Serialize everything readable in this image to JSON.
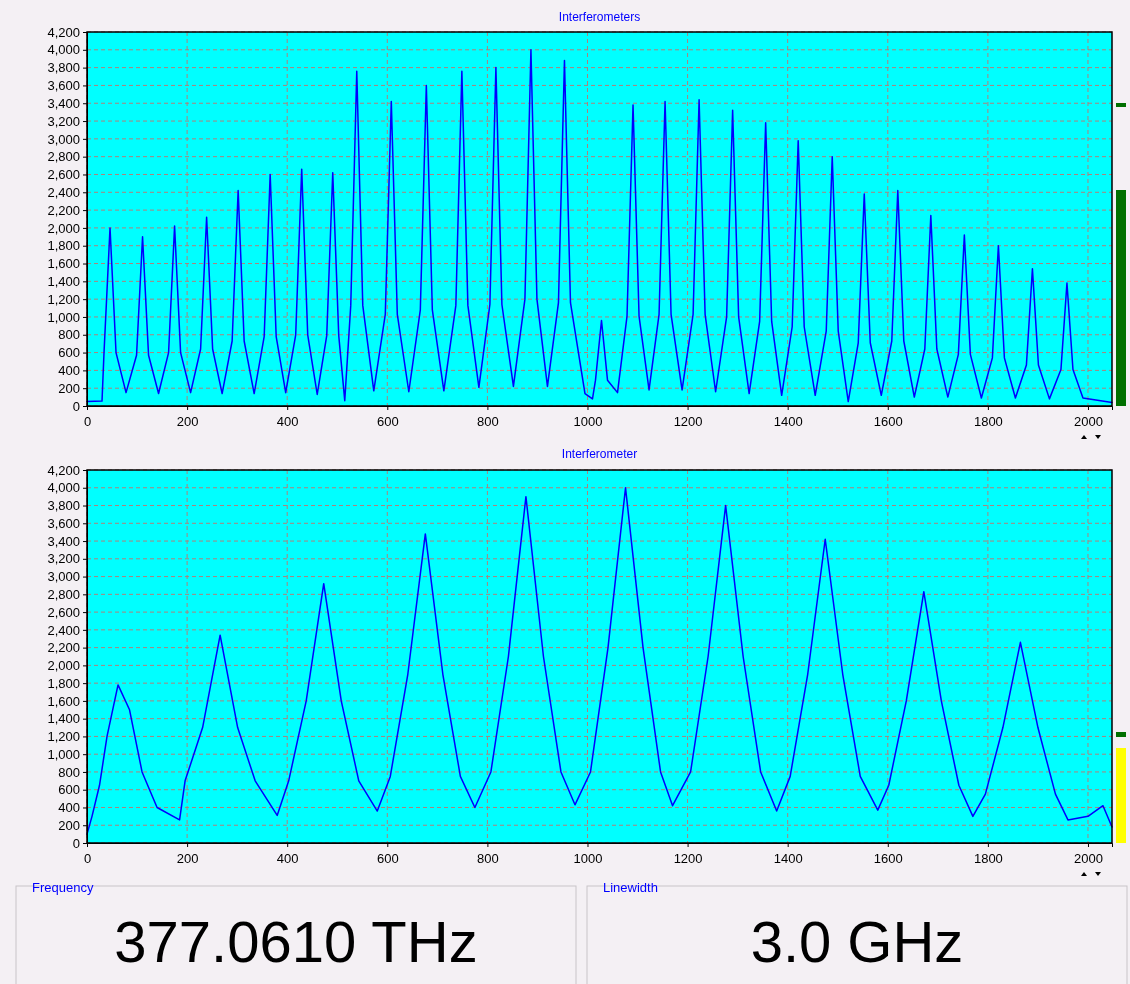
{
  "chart_data": [
    {
      "type": "line",
      "title": "Interferometers",
      "xlim": [
        0,
        2048
      ],
      "ylim": [
        0,
        4200
      ],
      "xticks": [
        0,
        200,
        400,
        600,
        800,
        {
          "value": 1000,
          "label": "1000"
        },
        {
          "value": 1200,
          "label": "1200"
        },
        {
          "value": 1400,
          "label": "1400"
        },
        {
          "value": 1600,
          "label": "1600"
        },
        {
          "value": 1800,
          "label": "1800"
        },
        {
          "value": 2000,
          "label": "2000"
        }
      ],
      "yticks": [
        0,
        200,
        400,
        600,
        800,
        {
          "value": 1000,
          "label": "1,000"
        },
        {
          "value": 1200,
          "label": "1,200"
        },
        {
          "value": 1400,
          "label": "1,400"
        },
        {
          "value": 1600,
          "label": "1,600"
        },
        {
          "value": 1800,
          "label": "1,800"
        },
        {
          "value": 2000,
          "label": "2,000"
        },
        {
          "value": 2200,
          "label": "2,200"
        },
        {
          "value": 2400,
          "label": "2,400"
        },
        {
          "value": 2600,
          "label": "2,600"
        },
        {
          "value": 2800,
          "label": "2,800"
        },
        {
          "value": 3000,
          "label": "3,000"
        },
        {
          "value": 3200,
          "label": "3,200"
        },
        {
          "value": 3400,
          "label": "3,400"
        },
        {
          "value": 3600,
          "label": "3,600"
        },
        {
          "value": 3800,
          "label": "3,800"
        },
        {
          "value": 4000,
          "label": "4,000"
        },
        {
          "value": 4200,
          "label": "4,200"
        }
      ],
      "grid": true,
      "line_style": "solid",
      "series": [
        {
          "color": "#0000ff",
          "x": [
            0,
            30,
            34,
            46,
            58,
            78,
            99,
            111,
            123,
            143,
            163,
            175,
            187,
            207,
            227,
            239,
            251,
            270,
            290,
            302,
            314,
            334,
            354,
            366,
            378,
            397,
            417,
            429,
            441,
            460,
            479,
            491,
            503,
            515,
            527,
            539,
            551,
            573,
            596,
            608,
            620,
            643,
            666,
            678,
            690,
            713,
            737,
            749,
            761,
            783,
            805,
            817,
            829,
            852,
            875,
            887,
            899,
            920,
            942,
            954,
            966,
            995,
            1010,
            1016,
            1028,
            1040,
            1060,
            1079,
            1091,
            1103,
            1123,
            1143,
            1155,
            1167,
            1189,
            1211,
            1223,
            1235,
            1256,
            1278,
            1290,
            1302,
            1323,
            1344,
            1356,
            1368,
            1388,
            1409,
            1421,
            1433,
            1455,
            1477,
            1489,
            1501,
            1521,
            1541,
            1553,
            1565,
            1587,
            1608,
            1620,
            1632,
            1653,
            1674,
            1686,
            1698,
            1720,
            1741,
            1753,
            1765,
            1787,
            1809,
            1821,
            1833,
            1855,
            1877,
            1889,
            1901,
            1923,
            1946,
            1958,
            1970,
            1990,
            2048
          ],
          "values": [
            50,
            55,
            600,
            2000,
            600,
            150,
            570,
            1900,
            570,
            140,
            600,
            2020,
            600,
            150,
            640,
            2120,
            640,
            140,
            730,
            2420,
            730,
            140,
            780,
            2600,
            780,
            150,
            800,
            2660,
            800,
            130,
            790,
            2620,
            790,
            60,
            1130,
            3760,
            1130,
            170,
            1030,
            3420,
            1030,
            160,
            1080,
            3600,
            1080,
            170,
            1130,
            3760,
            1130,
            210,
            1140,
            3800,
            1140,
            220,
            1200,
            4000,
            1200,
            220,
            1160,
            3880,
            1160,
            140,
            80,
            290,
            960,
            290,
            150,
            1010,
            3380,
            1010,
            180,
            1030,
            3420,
            1030,
            180,
            1030,
            3440,
            1030,
            160,
            1000,
            3320,
            1000,
            140,
            950,
            3180,
            950,
            120,
            890,
            2980,
            890,
            120,
            840,
            2800,
            840,
            50,
            710,
            2380,
            710,
            120,
            730,
            2420,
            730,
            100,
            640,
            2140,
            640,
            100,
            580,
            1920,
            580,
            90,
            540,
            1800,
            540,
            90,
            460,
            1540,
            460,
            80,
            410,
            1380,
            410,
            90,
            40
          ]
        }
      ]
    },
    {
      "type": "line",
      "title": "Interferometer",
      "xlim": [
        0,
        2048
      ],
      "ylim": [
        0,
        4200
      ],
      "xticks": [
        0,
        200,
        400,
        600,
        800,
        {
          "value": 1000,
          "label": "1000"
        },
        {
          "value": 1200,
          "label": "1200"
        },
        {
          "value": 1400,
          "label": "1400"
        },
        {
          "value": 1600,
          "label": "1600"
        },
        {
          "value": 1800,
          "label": "1800"
        },
        {
          "value": 2000,
          "label": "2000"
        }
      ],
      "yticks": [
        0,
        200,
        400,
        600,
        800,
        {
          "value": 1000,
          "label": "1,000"
        },
        {
          "value": 1200,
          "label": "1,200"
        },
        {
          "value": 1400,
          "label": "1,400"
        },
        {
          "value": 1600,
          "label": "1,600"
        },
        {
          "value": 1800,
          "label": "1,800"
        },
        {
          "value": 2000,
          "label": "2,000"
        },
        {
          "value": 2200,
          "label": "2,200"
        },
        {
          "value": 2400,
          "label": "2,400"
        },
        {
          "value": 2600,
          "label": "2,600"
        },
        {
          "value": 2800,
          "label": "2,800"
        },
        {
          "value": 3000,
          "label": "3,000"
        },
        {
          "value": 3200,
          "label": "3,200"
        },
        {
          "value": 3400,
          "label": "3,400"
        },
        {
          "value": 3600,
          "label": "3,600"
        },
        {
          "value": 3800,
          "label": "3,800"
        },
        {
          "value": 4000,
          "label": "4,000"
        },
        {
          "value": 4200,
          "label": "4,200"
        }
      ],
      "grid": true,
      "line_style": "solid",
      "series": [
        {
          "color": "#0000ff",
          "x": [
            0,
            10,
            25,
            40,
            62,
            85,
            110,
            140,
            185,
            196,
            231,
            266,
            301,
            336,
            380,
            403,
            438,
            473,
            508,
            543,
            580,
            606,
            641,
            676,
            711,
            746,
            775,
            807,
            842,
            877,
            912,
            947,
            975,
            1006,
            1041,
            1076,
            1111,
            1146,
            1170,
            1206,
            1241,
            1276,
            1311,
            1346,
            1378,
            1405,
            1440,
            1475,
            1510,
            1545,
            1580,
            1602,
            1637,
            1672,
            1707,
            1742,
            1770,
            1795,
            1830,
            1865,
            1900,
            1935,
            1960,
            2000,
            2030,
            2048
          ],
          "values": [
            100,
            300,
            650,
            1200,
            1780,
            1500,
            800,
            400,
            260,
            700,
            1300,
            2340,
            1300,
            700,
            310,
            700,
            1600,
            2920,
            1600,
            700,
            360,
            750,
            1900,
            3480,
            1900,
            750,
            400,
            800,
            2100,
            3900,
            2100,
            800,
            430,
            800,
            2200,
            4000,
            2200,
            800,
            420,
            800,
            2100,
            3800,
            2100,
            800,
            360,
            750,
            1900,
            3420,
            1900,
            750,
            370,
            650,
            1600,
            2830,
            1600,
            650,
            300,
            550,
            1300,
            2260,
            1300,
            550,
            260,
            300,
            420,
            180
          ]
        }
      ]
    },
    {
      "type": "other",
      "annotations": [
        "Frequency",
        "377.0610 THz",
        "Linewidth",
        "3.0 GHz"
      ]
    }
  ]
}
